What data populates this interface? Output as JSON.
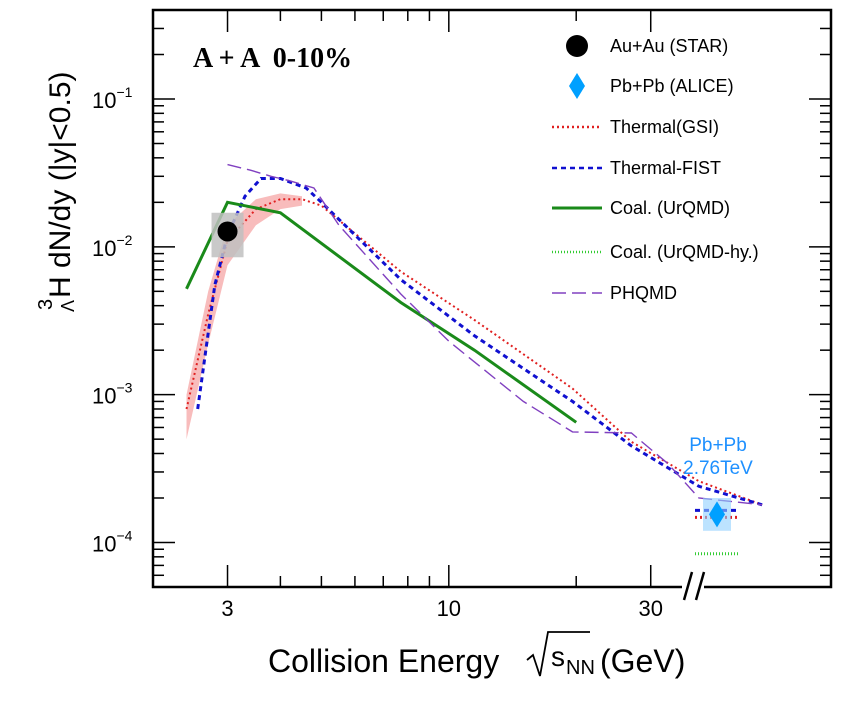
{
  "chart_data": {
    "type": "line",
    "title": "A + A  0-10%",
    "xlabel": "Collision Energy",
    "xlabel_sqrt_symbol": "s",
    "xlabel_subscript": "NN",
    "xlabel_unit": "(GeV)",
    "ylabel_pre": "3",
    "ylabel_sub": "Λ",
    "ylabel_main": "H dN/dy (|y|<0.5)",
    "x_scale": "log",
    "y_scale": "log",
    "xlim": [
      2.0,
      80.0
    ],
    "ylim": [
      5e-05,
      0.4
    ],
    "x_ticks": [
      {
        "value": 3,
        "label": "3"
      },
      {
        "value": 10,
        "label": "10"
      },
      {
        "value": 30,
        "label": "30"
      }
    ],
    "y_ticks": [
      {
        "value": 0.0001,
        "base": "10",
        "exp": "−4"
      },
      {
        "value": 0.001,
        "base": "10",
        "exp": "−3"
      },
      {
        "value": 0.01,
        "base": "10",
        "exp": "−2"
      },
      {
        "value": 0.1,
        "base": "10",
        "exp": "−1"
      }
    ],
    "legend_position": "top-right",
    "series": [
      {
        "name": "Au+Au (STAR)",
        "key": "star",
        "kind": "marker",
        "color": "#000000",
        "points": [
          {
            "x": 3.0,
            "y": 0.0127,
            "ylow": 0.0085,
            "yhigh": 0.017
          }
        ]
      },
      {
        "name": "Pb+Pb (ALICE)",
        "key": "alice",
        "kind": "marker",
        "color": "#00a0ff",
        "points": [
          {
            "x": 2760,
            "y": 0.000155,
            "ylow": 0.00012,
            "yhigh": 0.0002
          }
        ]
      },
      {
        "name": "Thermal(GSI)",
        "key": "gsi",
        "kind": "line",
        "color": "#e02020",
        "dash": "2,3",
        "x": [
          2.4,
          2.7,
          3.0,
          3.5,
          4.0,
          4.5,
          5.0,
          7.7,
          11.5,
          19.6,
          27,
          39,
          55
        ],
        "y": [
          0.0008,
          0.0035,
          0.011,
          0.018,
          0.021,
          0.021,
          0.019,
          0.0068,
          0.0032,
          0.0011,
          0.00048,
          0.00026,
          0.00018
        ]
      },
      {
        "name": "Thermal-FIST",
        "key": "fist",
        "kind": "line",
        "color": "#1010d0",
        "dash": "5,4",
        "x": [
          2.55,
          2.8,
          3.0,
          3.3,
          3.6,
          4.0,
          4.6,
          5.0,
          7.7,
          11.5,
          19.6,
          27,
          39,
          55
        ],
        "y": [
          0.0008,
          0.0055,
          0.012,
          0.022,
          0.029,
          0.029,
          0.025,
          0.02,
          0.006,
          0.0025,
          0.0009,
          0.00045,
          0.00024,
          0.00018
        ]
      },
      {
        "name": "Coal. (UrQMD)",
        "key": "coal",
        "kind": "line",
        "color": "#1a8a1a",
        "dash": "",
        "x": [
          2.4,
          3.0,
          4.0,
          7.7,
          11.5,
          20.0
        ],
        "y": [
          0.0052,
          0.02,
          0.017,
          0.0042,
          0.002,
          0.00065
        ]
      },
      {
        "name": "Coal. (UrQMD-hy.)",
        "key": "coalhy",
        "kind": "line",
        "color": "#33cc33",
        "dash": "1,2",
        "points": [
          {
            "x": 2760,
            "y": 8.4e-05
          }
        ]
      },
      {
        "name": "PHQMD",
        "key": "phqmd",
        "kind": "line",
        "color": "#8040c0",
        "dash": "14,6",
        "x": [
          3.0,
          3.4,
          3.8,
          4.2,
          4.8,
          5.5,
          7.7,
          10.0,
          15.0,
          19.6,
          27.0,
          33.0,
          39.0,
          55.0
        ],
        "y": [
          0.036,
          0.033,
          0.03,
          0.028,
          0.025,
          0.014,
          0.0048,
          0.0023,
          0.0009,
          0.00056,
          0.00055,
          0.00034,
          0.0002,
          0.00018
        ]
      }
    ],
    "gsi_band": {
      "x": [
        2.4,
        2.7,
        3.0,
        3.5,
        4.0,
        4.5
      ],
      "ylow": [
        0.0005,
        0.0022,
        0.0075,
        0.014,
        0.018,
        0.019
      ],
      "yhigh": [
        0.001,
        0.005,
        0.014,
        0.021,
        0.023,
        0.022
      ]
    },
    "alice_model_markers": [
      {
        "key": "fist",
        "y": 0.000165
      },
      {
        "key": "gsi",
        "y": 0.000148
      },
      {
        "key": "coalhy",
        "y": 8.4e-05
      }
    ],
    "alice_annotation": {
      "line1": "Pb+Pb",
      "line2": "2.76TeV",
      "color": "#1e90ff"
    },
    "axis_break": "//"
  }
}
